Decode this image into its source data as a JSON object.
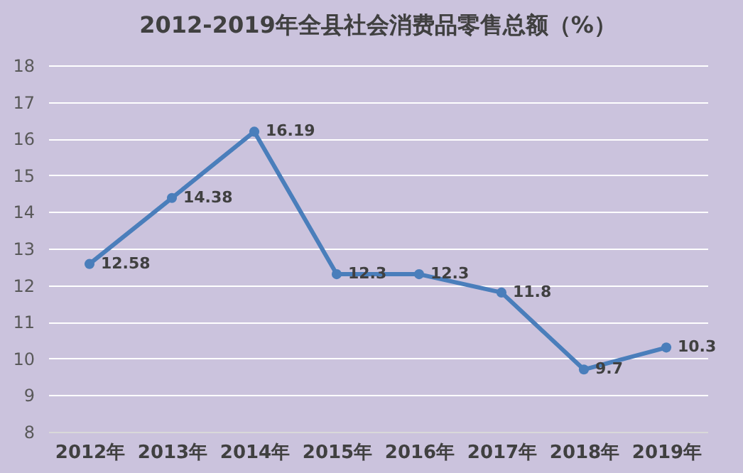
{
  "chart_data": {
    "type": "line",
    "title": "2012-2019年全县社会消费品零售总额（%）",
    "categories": [
      "2012年",
      "2013年",
      "2014年",
      "2015年",
      "2016年",
      "2017年",
      "2018年",
      "2019年"
    ],
    "series": [
      {
        "color": "#4a7ebb",
        "values": [
          12.58,
          14.38,
          16.19,
          12.3,
          12.3,
          11.8,
          9.7,
          10.3
        ]
      }
    ],
    "ylim": [
      8,
      18
    ],
    "yticks": [
      8,
      9,
      10,
      11,
      12,
      13,
      14,
      15,
      16,
      17,
      18
    ],
    "grid": "y",
    "marker": "circle",
    "line_style": "solid",
    "data_labels": true
  }
}
